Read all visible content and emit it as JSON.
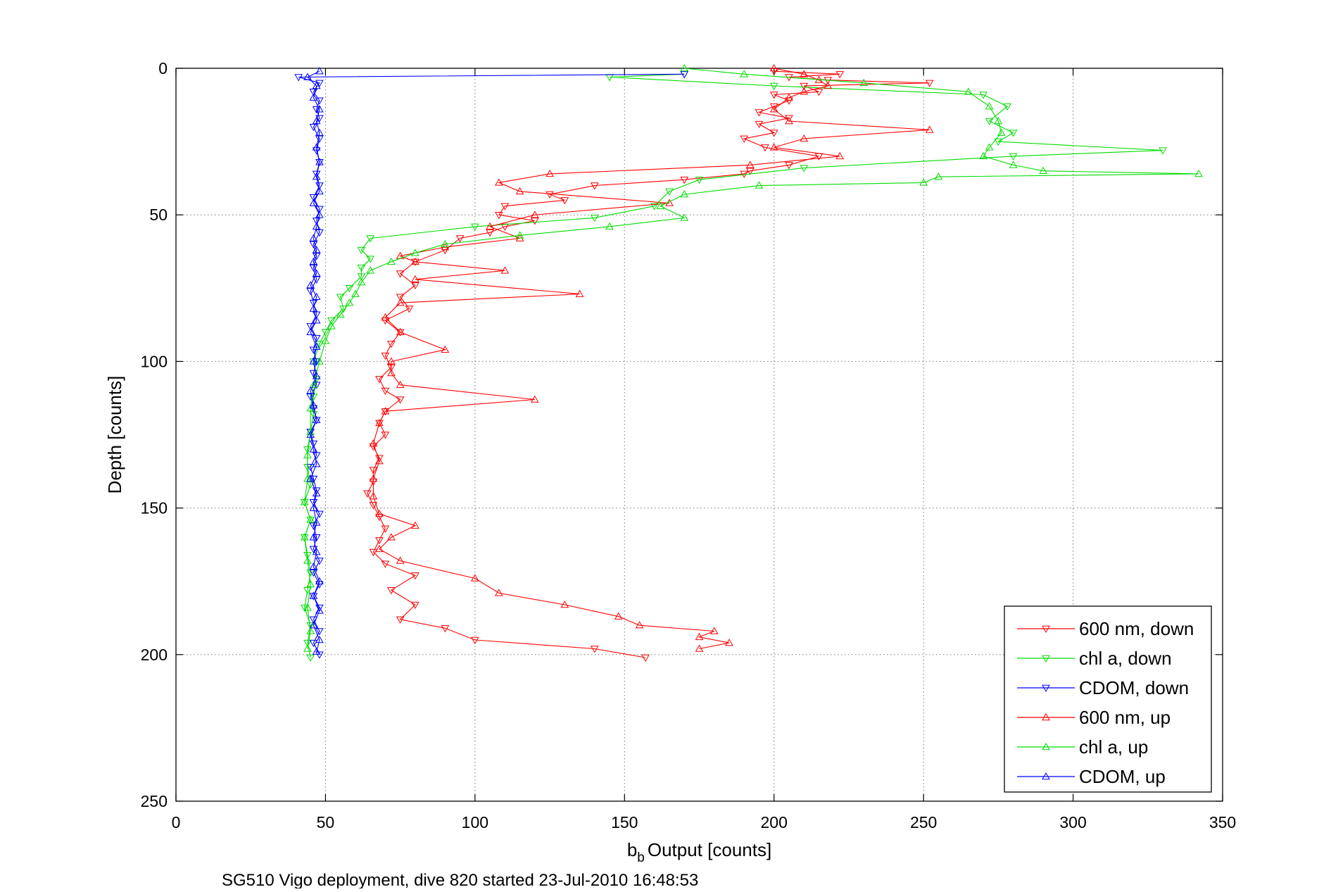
{
  "chart_data": {
    "type": "line",
    "title": "",
    "xlabel": "Output [counts]",
    "xlabel_prefix": "b",
    "xlabel_subscript": "b",
    "ylabel": "Depth [counts]",
    "caption": "SG510 Vigo deployment, dive 820 started 23-Jul-2010 16:48:53",
    "xlim": [
      0,
      350
    ],
    "ylim": [
      0,
      250
    ],
    "y_reversed": true,
    "xticks": [
      0,
      50,
      100,
      150,
      200,
      250,
      300,
      350
    ],
    "yticks": [
      0,
      50,
      100,
      150,
      200,
      250
    ],
    "grid": true,
    "legend_position": "lower-right",
    "series": [
      {
        "name": "600 nm, down",
        "color": "#ff0000",
        "marker": "triangle-down",
        "points": [
          [
            200,
            1
          ],
          [
            222,
            2
          ],
          [
            205,
            3
          ],
          [
            218,
            4
          ],
          [
            252,
            5
          ],
          [
            210,
            6
          ],
          [
            215,
            8
          ],
          [
            200,
            9
          ],
          [
            205,
            11
          ],
          [
            200,
            13
          ],
          [
            195,
            15
          ],
          [
            205,
            17
          ],
          [
            195,
            19
          ],
          [
            200,
            22
          ],
          [
            190,
            24
          ],
          [
            197,
            27
          ],
          [
            215,
            30
          ],
          [
            205,
            33
          ],
          [
            192,
            35
          ],
          [
            190,
            36
          ],
          [
            170,
            38
          ],
          [
            140,
            40
          ],
          [
            125,
            43
          ],
          [
            130,
            45
          ],
          [
            110,
            47
          ],
          [
            108,
            50
          ],
          [
            120,
            52
          ],
          [
            110,
            54
          ],
          [
            105,
            56
          ],
          [
            95,
            58
          ],
          [
            90,
            62
          ],
          [
            80,
            66
          ],
          [
            75,
            70
          ],
          [
            80,
            74
          ],
          [
            75,
            78
          ],
          [
            78,
            82
          ],
          [
            70,
            86
          ],
          [
            75,
            90
          ],
          [
            72,
            94
          ],
          [
            70,
            98
          ],
          [
            72,
            102
          ],
          [
            68,
            106
          ],
          [
            70,
            110
          ],
          [
            75,
            113
          ],
          [
            70,
            117
          ],
          [
            68,
            121
          ],
          [
            70,
            125
          ],
          [
            66,
            129
          ],
          [
            68,
            133
          ],
          [
            66,
            137
          ],
          [
            66,
            141
          ],
          [
            64,
            145
          ],
          [
            66,
            149
          ],
          [
            68,
            153
          ],
          [
            70,
            157
          ],
          [
            68,
            161
          ],
          [
            66,
            165
          ],
          [
            70,
            169
          ],
          [
            80,
            173
          ],
          [
            72,
            178
          ],
          [
            80,
            183
          ],
          [
            75,
            188
          ],
          [
            90,
            191
          ],
          [
            100,
            195
          ],
          [
            140,
            198
          ],
          [
            157,
            201
          ]
        ]
      },
      {
        "name": "chl a, down",
        "color": "#00dd00",
        "marker": "triangle-down",
        "points": [
          [
            170,
            2
          ],
          [
            145,
            3
          ],
          [
            200,
            6
          ],
          [
            270,
            9
          ],
          [
            278,
            13
          ],
          [
            272,
            18
          ],
          [
            280,
            22
          ],
          [
            275,
            25
          ],
          [
            330,
            28
          ],
          [
            280,
            30
          ],
          [
            210,
            34
          ],
          [
            175,
            38
          ],
          [
            165,
            42
          ],
          [
            160,
            47
          ],
          [
            140,
            51
          ],
          [
            100,
            54
          ],
          [
            65,
            58
          ],
          [
            62,
            62
          ],
          [
            65,
            65
          ],
          [
            62,
            68
          ],
          [
            62,
            71
          ],
          [
            58,
            75
          ],
          [
            55,
            78
          ],
          [
            56,
            82
          ],
          [
            52,
            86
          ],
          [
            50,
            90
          ],
          [
            48,
            94
          ],
          [
            46,
            100
          ],
          [
            47,
            106
          ],
          [
            46,
            112
          ],
          [
            46,
            118
          ],
          [
            45,
            124
          ],
          [
            44,
            130
          ],
          [
            44,
            136
          ],
          [
            45,
            142
          ],
          [
            43,
            148
          ],
          [
            45,
            154
          ],
          [
            43,
            160
          ],
          [
            44,
            166
          ],
          [
            45,
            172
          ],
          [
            44,
            178
          ],
          [
            43,
            184
          ],
          [
            45,
            190
          ],
          [
            44,
            196
          ],
          [
            45,
            201
          ]
        ]
      },
      {
        "name": "CDOM, down",
        "color": "#0000ff",
        "marker": "triangle-down",
        "points": [
          [
            170,
            2
          ],
          [
            41,
            3
          ],
          [
            48,
            5
          ],
          [
            46,
            8
          ],
          [
            48,
            11
          ],
          [
            47,
            14
          ],
          [
            48,
            17
          ],
          [
            46,
            20
          ],
          [
            48,
            24
          ],
          [
            47,
            28
          ],
          [
            48,
            32
          ],
          [
            47,
            36
          ],
          [
            48,
            40
          ],
          [
            46,
            44
          ],
          [
            48,
            48
          ],
          [
            47,
            52
          ],
          [
            48,
            56
          ],
          [
            46,
            60
          ],
          [
            47,
            64
          ],
          [
            46,
            68
          ],
          [
            47,
            72
          ],
          [
            45,
            76
          ],
          [
            46,
            80
          ],
          [
            47,
            84
          ],
          [
            45,
            88
          ],
          [
            47,
            92
          ],
          [
            46,
            96
          ],
          [
            47,
            100
          ],
          [
            46,
            104
          ],
          [
            47,
            108
          ],
          [
            45,
            112
          ],
          [
            46,
            116
          ],
          [
            47,
            120
          ],
          [
            45,
            124
          ],
          [
            46,
            128
          ],
          [
            47,
            132
          ],
          [
            45,
            136
          ],
          [
            46,
            140
          ],
          [
            47,
            144
          ],
          [
            46,
            148
          ],
          [
            48,
            152
          ],
          [
            46,
            156
          ],
          [
            47,
            160
          ],
          [
            46,
            164
          ],
          [
            48,
            168
          ],
          [
            46,
            172
          ],
          [
            48,
            176
          ],
          [
            46,
            180
          ],
          [
            48,
            184
          ],
          [
            46,
            188
          ],
          [
            48,
            192
          ],
          [
            46,
            196
          ],
          [
            48,
            200
          ]
        ]
      },
      {
        "name": "600 nm, up",
        "color": "#ff0000",
        "marker": "triangle-up",
        "points": [
          [
            200,
            0
          ],
          [
            210,
            2
          ],
          [
            215,
            4
          ],
          [
            218,
            6
          ],
          [
            210,
            8
          ],
          [
            205,
            10
          ],
          [
            200,
            14
          ],
          [
            205,
            18
          ],
          [
            252,
            21
          ],
          [
            210,
            24
          ],
          [
            200,
            27
          ],
          [
            222,
            30
          ],
          [
            192,
            33
          ],
          [
            125,
            36
          ],
          [
            108,
            39
          ],
          [
            115,
            42
          ],
          [
            165,
            46
          ],
          [
            120,
            50
          ],
          [
            105,
            54
          ],
          [
            115,
            58
          ],
          [
            90,
            61
          ],
          [
            75,
            64
          ],
          [
            80,
            66
          ],
          [
            110,
            69
          ],
          [
            80,
            72
          ],
          [
            135,
            77
          ],
          [
            75,
            80
          ],
          [
            70,
            85
          ],
          [
            75,
            90
          ],
          [
            90,
            96
          ],
          [
            72,
            100
          ],
          [
            72,
            104
          ],
          [
            75,
            108
          ],
          [
            120,
            113
          ],
          [
            70,
            117
          ],
          [
            68,
            121
          ],
          [
            66,
            128
          ],
          [
            68,
            134
          ],
          [
            66,
            140
          ],
          [
            66,
            146
          ],
          [
            68,
            152
          ],
          [
            80,
            156
          ],
          [
            72,
            160
          ],
          [
            68,
            164
          ],
          [
            75,
            168
          ],
          [
            100,
            174
          ],
          [
            108,
            179
          ],
          [
            130,
            183
          ],
          [
            148,
            187
          ],
          [
            155,
            190
          ],
          [
            180,
            192
          ],
          [
            175,
            194
          ],
          [
            185,
            196
          ],
          [
            175,
            198
          ]
        ]
      },
      {
        "name": "chl a, up",
        "color": "#00dd00",
        "marker": "triangle-up",
        "points": [
          [
            170,
            0
          ],
          [
            190,
            2
          ],
          [
            230,
            5
          ],
          [
            265,
            8
          ],
          [
            272,
            13
          ],
          [
            275,
            18
          ],
          [
            276,
            22
          ],
          [
            272,
            27
          ],
          [
            270,
            30
          ],
          [
            280,
            33
          ],
          [
            290,
            35
          ],
          [
            342,
            36
          ],
          [
            255,
            37
          ],
          [
            250,
            39
          ],
          [
            195,
            40
          ],
          [
            170,
            43
          ],
          [
            162,
            47
          ],
          [
            170,
            51
          ],
          [
            145,
            54
          ],
          [
            115,
            57
          ],
          [
            90,
            60
          ],
          [
            80,
            63
          ],
          [
            72,
            66
          ],
          [
            65,
            69
          ],
          [
            62,
            73
          ],
          [
            60,
            77
          ],
          [
            58,
            80
          ],
          [
            55,
            84
          ],
          [
            52,
            88
          ],
          [
            50,
            93
          ],
          [
            48,
            100
          ],
          [
            46,
            108
          ],
          [
            45,
            116
          ],
          [
            45,
            124
          ],
          [
            44,
            132
          ],
          [
            44,
            140
          ],
          [
            43,
            148
          ],
          [
            45,
            154
          ],
          [
            43,
            160
          ],
          [
            44,
            168
          ],
          [
            45,
            176
          ],
          [
            44,
            184
          ],
          [
            45,
            192
          ],
          [
            44,
            198
          ]
        ]
      },
      {
        "name": "CDOM, up",
        "color": "#0000ff",
        "marker": "triangle-up",
        "points": [
          [
            48,
            1
          ],
          [
            44,
            3
          ],
          [
            47,
            6
          ],
          [
            46,
            10
          ],
          [
            48,
            14
          ],
          [
            47,
            18
          ],
          [
            48,
            22
          ],
          [
            47,
            27
          ],
          [
            48,
            32
          ],
          [
            47,
            37
          ],
          [
            48,
            42
          ],
          [
            46,
            46
          ],
          [
            48,
            50
          ],
          [
            47,
            54
          ],
          [
            46,
            58
          ],
          [
            47,
            62
          ],
          [
            46,
            66
          ],
          [
            47,
            70
          ],
          [
            45,
            74
          ],
          [
            47,
            78
          ],
          [
            46,
            82
          ],
          [
            47,
            86
          ],
          [
            45,
            90
          ],
          [
            47,
            95
          ],
          [
            46,
            100
          ],
          [
            47,
            105
          ],
          [
            45,
            110
          ],
          [
            46,
            115
          ],
          [
            47,
            120
          ],
          [
            45,
            125
          ],
          [
            46,
            130
          ],
          [
            47,
            135
          ],
          [
            45,
            140
          ],
          [
            47,
            145
          ],
          [
            46,
            150
          ],
          [
            47,
            155
          ],
          [
            46,
            160
          ],
          [
            47,
            165
          ],
          [
            46,
            170
          ],
          [
            48,
            175
          ],
          [
            46,
            180
          ],
          [
            48,
            185
          ],
          [
            46,
            190
          ],
          [
            48,
            195
          ],
          [
            47,
            199
          ]
        ]
      }
    ]
  }
}
